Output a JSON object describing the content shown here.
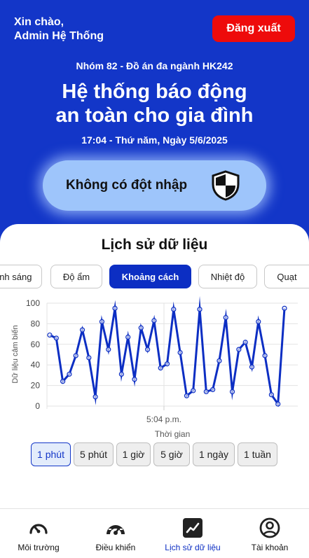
{
  "header": {
    "greeting_line1": "Xin chào,",
    "greeting_line2": "Admin Hệ Thống",
    "logout_label": "Đăng xuất",
    "group": "Nhóm 82 - Đồ án đa ngành HK242",
    "title_line1": "Hệ thống báo động",
    "title_line2": "an toàn cho gia đình",
    "datetime": "17:04 - Thứ năm, Ngày 5/6/2025",
    "status": "Không có đột nhập",
    "status_icon": "shield-icon"
  },
  "history": {
    "title": "Lịch sử dữ liệu",
    "tabs": [
      "Ánh sáng",
      "Độ ẩm",
      "Khoảng cách",
      "Nhiệt độ",
      "Quạt"
    ],
    "active_tab": "Khoảng cách",
    "ranges": [
      "1 phút",
      "5 phút",
      "1 giờ",
      "5 giờ",
      "1 ngày",
      "1 tuần"
    ],
    "active_range": "1 phút"
  },
  "chart_data": {
    "type": "line",
    "xlabel": "Thời gian",
    "ylabel": "Dữ liệu cảm biến",
    "x_tick_label": "5:04 p.m.",
    "ylim": [
      0,
      100
    ],
    "yticks": [
      0,
      20,
      40,
      60,
      80,
      100
    ],
    "grid": true,
    "line_color": "#0c2ec3",
    "values": [
      69,
      66,
      24,
      31,
      49,
      74,
      47,
      9,
      82,
      55,
      95,
      31,
      67,
      26,
      76,
      55,
      83,
      37,
      41,
      94,
      52,
      10,
      15,
      94,
      14,
      16,
      44,
      86,
      14,
      55,
      62,
      38,
      82,
      49,
      11,
      2,
      95
    ]
  },
  "nav": {
    "items": [
      {
        "label": "Môi trường",
        "icon": "gauge-icon"
      },
      {
        "label": "Điều khiển",
        "icon": "dashboard-icon"
      },
      {
        "label": "Lịch sử dữ liệu",
        "icon": "line-chart-icon"
      },
      {
        "label": "Tài khoản",
        "icon": "account-icon"
      }
    ],
    "active_index": 2
  }
}
